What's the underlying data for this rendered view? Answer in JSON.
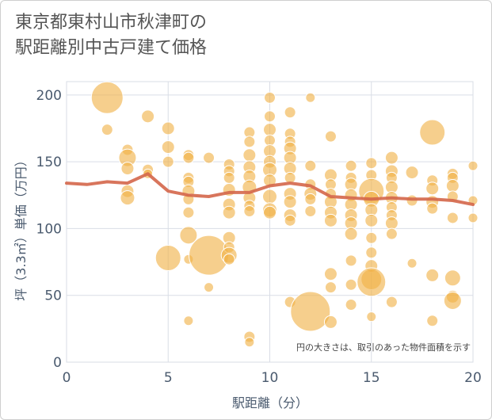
{
  "title_line1": "東京都東村山市秋津町の",
  "title_line2": "駅距離別中古戸建て価格",
  "chart_data": {
    "type": "scatter",
    "title": "東京都東村山市秋津町の駅距離別中古戸建て価格",
    "xlabel": "駅距離（分）",
    "ylabel": "坪（3.3㎡）単価（万円）",
    "xlim": [
      0,
      20
    ],
    "ylim": [
      0,
      210
    ],
    "xticks": [
      0,
      5,
      10,
      15,
      20
    ],
    "yticks": [
      0,
      50,
      100,
      150,
      200
    ],
    "grid": true,
    "annotation": "円の大きさは、取引のあった物件面積を示す",
    "colors": {
      "bubble": "#f0b247",
      "bubble_stroke": "#ffffff",
      "line": "#d4664a",
      "grid": "#d9dde6",
      "axis_text": "#4a5a6e"
    },
    "series": [
      {
        "type": "line",
        "points": [
          [
            0,
            134
          ],
          [
            1,
            133
          ],
          [
            2,
            135
          ],
          [
            3,
            134
          ],
          [
            4,
            141
          ],
          [
            5,
            128
          ],
          [
            6,
            125
          ],
          [
            7,
            124
          ],
          [
            8,
            127
          ],
          [
            9,
            127
          ],
          [
            10,
            132
          ],
          [
            11,
            134
          ],
          [
            12,
            132
          ],
          [
            13,
            124
          ],
          [
            14,
            123
          ],
          [
            15,
            122
          ],
          [
            16,
            123
          ],
          [
            17,
            122
          ],
          [
            18,
            122
          ],
          [
            19,
            121
          ],
          [
            20,
            118
          ]
        ]
      },
      {
        "type": "bubble",
        "points": [
          [
            2,
            198,
            20
          ],
          [
            2,
            174,
            7
          ],
          [
            3,
            159,
            7
          ],
          [
            3,
            153,
            11
          ],
          [
            3,
            145,
            8
          ],
          [
            3,
            128,
            8
          ],
          [
            3,
            123,
            9
          ],
          [
            4,
            184,
            8
          ],
          [
            4,
            144,
            7
          ],
          [
            4,
            141,
            6
          ],
          [
            5,
            175,
            8
          ],
          [
            5,
            161,
            8
          ],
          [
            5,
            150,
            7
          ],
          [
            5,
            78,
            16
          ],
          [
            6,
            155,
            7
          ],
          [
            6,
            153,
            7
          ],
          [
            6,
            138,
            7
          ],
          [
            6,
            135,
            7
          ],
          [
            6,
            128,
            8
          ],
          [
            6,
            122,
            7
          ],
          [
            6,
            112,
            7
          ],
          [
            6,
            95,
            11
          ],
          [
            6,
            77,
            6
          ],
          [
            6,
            31,
            6
          ],
          [
            7,
            153,
            7
          ],
          [
            7,
            80,
            25
          ],
          [
            7,
            56,
            6
          ],
          [
            8,
            148,
            7
          ],
          [
            8,
            143,
            7
          ],
          [
            8,
            138,
            7
          ],
          [
            8,
            129,
            8
          ],
          [
            8,
            118,
            8
          ],
          [
            8,
            112,
            8
          ],
          [
            8,
            93,
            8
          ],
          [
            8,
            86,
            7
          ],
          [
            8,
            80,
            10
          ],
          [
            8,
            77,
            7
          ],
          [
            9,
            172,
            7
          ],
          [
            9,
            165,
            7
          ],
          [
            9,
            155,
            8
          ],
          [
            9,
            146,
            8
          ],
          [
            9,
            139,
            8
          ],
          [
            9,
            131,
            9
          ],
          [
            9,
            123,
            8
          ],
          [
            9,
            117,
            7
          ],
          [
            9,
            113,
            7
          ],
          [
            9,
            19,
            7
          ],
          [
            9,
            15,
            6
          ],
          [
            10,
            198,
            7
          ],
          [
            10,
            184,
            7
          ],
          [
            10,
            174,
            8
          ],
          [
            10,
            166,
            7
          ],
          [
            10,
            158,
            8
          ],
          [
            10,
            150,
            8
          ],
          [
            10,
            144,
            9
          ],
          [
            10,
            136,
            8
          ],
          [
            10,
            124,
            9
          ],
          [
            10,
            114,
            9
          ],
          [
            10,
            112,
            8
          ],
          [
            11,
            187,
            7
          ],
          [
            11,
            171,
            7
          ],
          [
            11,
            165,
            7
          ],
          [
            11,
            160,
            8
          ],
          [
            11,
            153,
            8
          ],
          [
            11,
            145,
            8
          ],
          [
            11,
            138,
            7
          ],
          [
            11,
            126,
            8
          ],
          [
            11,
            120,
            8
          ],
          [
            11,
            110,
            8
          ],
          [
            11,
            106,
            7
          ],
          [
            11,
            45,
            7
          ],
          [
            12,
            198,
            6
          ],
          [
            12,
            147,
            7
          ],
          [
            12,
            133,
            7
          ],
          [
            12,
            126,
            8
          ],
          [
            12,
            122,
            7
          ],
          [
            12,
            113,
            7
          ],
          [
            12,
            38,
            25
          ],
          [
            13,
            169,
            7
          ],
          [
            13,
            140,
            8
          ],
          [
            13,
            133,
            7
          ],
          [
            13,
            126,
            7
          ],
          [
            13,
            120,
            8
          ],
          [
            13,
            112,
            8
          ],
          [
            13,
            106,
            8
          ],
          [
            13,
            66,
            8
          ],
          [
            13,
            56,
            7
          ],
          [
            13,
            30,
            8
          ],
          [
            14,
            147,
            7
          ],
          [
            14,
            138,
            7
          ],
          [
            14,
            133,
            8
          ],
          [
            14,
            125,
            8
          ],
          [
            14,
            118,
            8
          ],
          [
            14,
            110,
            8
          ],
          [
            14,
            104,
            8
          ],
          [
            14,
            96,
            8
          ],
          [
            14,
            76,
            7
          ],
          [
            14,
            58,
            7
          ],
          [
            14,
            43,
            7
          ],
          [
            15,
            149,
            7
          ],
          [
            15,
            140,
            7
          ],
          [
            15,
            128,
            16
          ],
          [
            15,
            122,
            10
          ],
          [
            15,
            114,
            8
          ],
          [
            15,
            106,
            8
          ],
          [
            15,
            93,
            7
          ],
          [
            15,
            82,
            7
          ],
          [
            15,
            72,
            8
          ],
          [
            15,
            62,
            13
          ],
          [
            15,
            60,
            18
          ],
          [
            15,
            34,
            6
          ],
          [
            16,
            153,
            8
          ],
          [
            16,
            143,
            8
          ],
          [
            16,
            138,
            7
          ],
          [
            16,
            131,
            8
          ],
          [
            16,
            123,
            8
          ],
          [
            16,
            116,
            7
          ],
          [
            16,
            110,
            7
          ],
          [
            16,
            104,
            8
          ],
          [
            16,
            96,
            7
          ],
          [
            16,
            45,
            7
          ],
          [
            17,
            142,
            8
          ],
          [
            17,
            121,
            7
          ],
          [
            17,
            74,
            6
          ],
          [
            18,
            172,
            16
          ],
          [
            18,
            136,
            7
          ],
          [
            18,
            130,
            8
          ],
          [
            18,
            120,
            8
          ],
          [
            18,
            115,
            7
          ],
          [
            18,
            65,
            8
          ],
          [
            18,
            31,
            7
          ],
          [
            19,
            141,
            7
          ],
          [
            19,
            138,
            7
          ],
          [
            19,
            132,
            8
          ],
          [
            19,
            124,
            7
          ],
          [
            19,
            108,
            7
          ],
          [
            19,
            63,
            10
          ],
          [
            19,
            49,
            8
          ],
          [
            19,
            46,
            11
          ],
          [
            20,
            147,
            6
          ],
          [
            20,
            121,
            6
          ],
          [
            20,
            108,
            6
          ]
        ]
      }
    ]
  }
}
